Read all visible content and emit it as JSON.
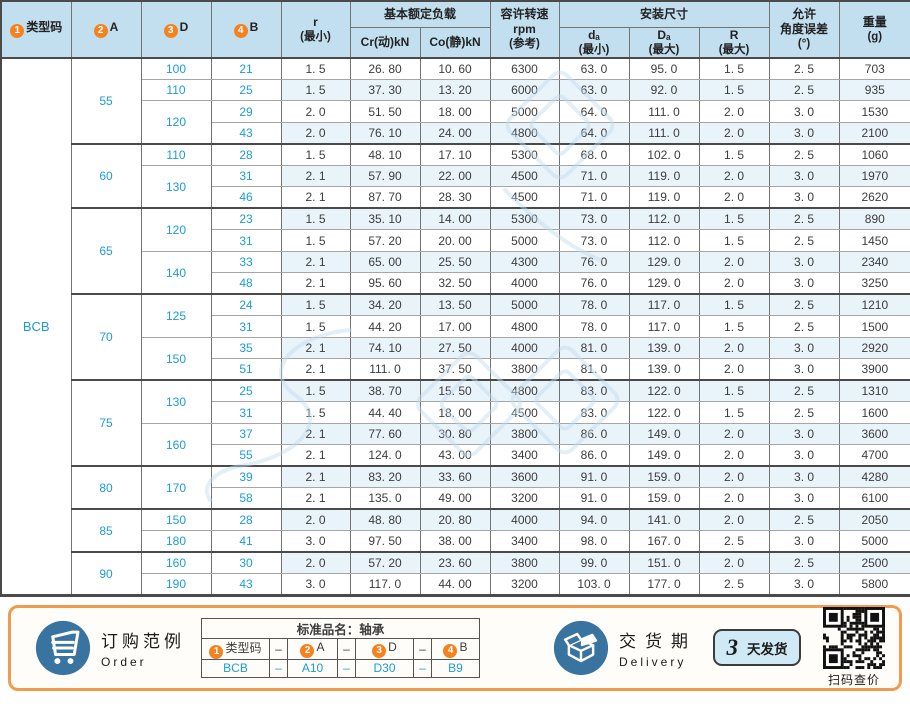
{
  "colors": {
    "accent_blue": "#1c9cd6",
    "header_bg": "#c2dfef",
    "alt_row_bg": "#e9f3fa",
    "circle_orange": "#f5821f",
    "icon_blue": "#38749f",
    "footer_border": "#f09b50",
    "badge_bg": "#cfe9f5"
  },
  "table": {
    "type_code": "BCB",
    "headers": {
      "num1": "1",
      "num2": "2",
      "num3": "3",
      "num4": "4",
      "col_type": "类型码",
      "col_a": "A",
      "col_d": "D",
      "col_b": "B",
      "r_min": "r",
      "r_min_sub": "(最小)",
      "load_group": "基本额定负载",
      "cr": "Cr(动)kN",
      "co": "Co(静)kN",
      "rpm_l1": "容许转速",
      "rpm_l2": "rpm",
      "rpm_l3": "(参考)",
      "mount_group": "安装尺寸",
      "da": "dₐ",
      "da_sub": "(最小)",
      "Da": "Dₐ",
      "Da_sub": "(最大)",
      "R": "R",
      "R_sub": "(最大)",
      "ang_l1": "允许",
      "ang_l2": "角度误差",
      "ang_l3": "(°)",
      "wt_l1": "重量",
      "wt_l2": "(g)"
    },
    "groups": [
      {
        "a": "55",
        "d_blocks": [
          {
            "d": "100",
            "rows": [
              {
                "b": "21",
                "r": "1. 5",
                "cr": "26. 80",
                "co": "10. 60",
                "rpm": "6300",
                "da": "63. 0",
                "Da": "95. 0",
                "R": "1. 5",
                "ang": "2. 5",
                "wt": "703"
              }
            ]
          },
          {
            "d": "110",
            "rows": [
              {
                "b": "25",
                "r": "1. 5",
                "cr": "37. 30",
                "co": "13. 20",
                "rpm": "6000",
                "da": "63. 0",
                "Da": "92. 0",
                "R": "1. 5",
                "ang": "2. 5",
                "wt": "935"
              }
            ]
          },
          {
            "d": "120",
            "rows": [
              {
                "b": "29",
                "r": "2. 0",
                "cr": "51. 50",
                "co": "18. 00",
                "rpm": "5000",
                "da": "64. 0",
                "Da": "111. 0",
                "R": "2. 0",
                "ang": "3. 0",
                "wt": "1530"
              },
              {
                "b": "43",
                "r": "2. 0",
                "cr": "76. 10",
                "co": "24. 00",
                "rpm": "4800",
                "da": "64. 0",
                "Da": "111. 0",
                "R": "2. 0",
                "ang": "3. 0",
                "wt": "2100"
              }
            ]
          }
        ]
      },
      {
        "a": "60",
        "d_blocks": [
          {
            "d": "110",
            "rows": [
              {
                "b": "28",
                "r": "1. 5",
                "cr": "48. 10",
                "co": "17. 10",
                "rpm": "5300",
                "da": "68. 0",
                "Da": "102. 0",
                "R": "1. 5",
                "ang": "2. 5",
                "wt": "1060"
              }
            ]
          },
          {
            "d": "130",
            "rows": [
              {
                "b": "31",
                "r": "2. 1",
                "cr": "57. 90",
                "co": "22. 00",
                "rpm": "4500",
                "da": "71. 0",
                "Da": "119. 0",
                "R": "2. 0",
                "ang": "3. 0",
                "wt": "1970"
              },
              {
                "b": "46",
                "r": "2. 1",
                "cr": "87. 70",
                "co": "28. 30",
                "rpm": "4500",
                "da": "71. 0",
                "Da": "119. 0",
                "R": "2. 0",
                "ang": "3. 0",
                "wt": "2620"
              }
            ]
          }
        ]
      },
      {
        "a": "65",
        "d_blocks": [
          {
            "d": "120",
            "rows": [
              {
                "b": "23",
                "r": "1. 5",
                "cr": "35. 10",
                "co": "14. 00",
                "rpm": "5300",
                "da": "73. 0",
                "Da": "112. 0",
                "R": "1. 5",
                "ang": "2. 5",
                "wt": "890"
              },
              {
                "b": "31",
                "r": "1. 5",
                "cr": "57. 20",
                "co": "20. 00",
                "rpm": "5000",
                "da": "73. 0",
                "Da": "112. 0",
                "R": "1. 5",
                "ang": "2. 5",
                "wt": "1450"
              }
            ]
          },
          {
            "d": "140",
            "rows": [
              {
                "b": "33",
                "r": "2. 1",
                "cr": "65. 00",
                "co": "25. 50",
                "rpm": "4300",
                "da": "76. 0",
                "Da": "129. 0",
                "R": "2. 0",
                "ang": "3. 0",
                "wt": "2340"
              },
              {
                "b": "48",
                "r": "2. 1",
                "cr": "95. 60",
                "co": "32. 50",
                "rpm": "4000",
                "da": "76. 0",
                "Da": "129. 0",
                "R": "2. 0",
                "ang": "3. 0",
                "wt": "3250"
              }
            ]
          }
        ]
      },
      {
        "a": "70",
        "d_blocks": [
          {
            "d": "125",
            "rows": [
              {
                "b": "24",
                "r": "1. 5",
                "cr": "34. 20",
                "co": "13. 50",
                "rpm": "5000",
                "da": "78. 0",
                "Da": "117. 0",
                "R": "1. 5",
                "ang": "2. 5",
                "wt": "1210"
              },
              {
                "b": "31",
                "r": "1. 5",
                "cr": "44. 20",
                "co": "17. 00",
                "rpm": "4800",
                "da": "78. 0",
                "Da": "117. 0",
                "R": "1. 5",
                "ang": "2. 5",
                "wt": "1500"
              }
            ]
          },
          {
            "d": "150",
            "rows": [
              {
                "b": "35",
                "r": "2. 1",
                "cr": "74. 10",
                "co": "27. 50",
                "rpm": "4000",
                "da": "81. 0",
                "Da": "139. 0",
                "R": "2. 0",
                "ang": "3. 0",
                "wt": "2920"
              },
              {
                "b": "51",
                "r": "2. 1",
                "cr": "111. 0",
                "co": "37. 50",
                "rpm": "3800",
                "da": "81. 0",
                "Da": "139. 0",
                "R": "2. 0",
                "ang": "3. 0",
                "wt": "3900"
              }
            ]
          }
        ]
      },
      {
        "a": "75",
        "d_blocks": [
          {
            "d": "130",
            "rows": [
              {
                "b": "25",
                "r": "1. 5",
                "cr": "38. 70",
                "co": "15. 50",
                "rpm": "4800",
                "da": "83. 0",
                "Da": "122. 0",
                "R": "1. 5",
                "ang": "2. 5",
                "wt": "1310"
              },
              {
                "b": "31",
                "r": "1. 5",
                "cr": "44. 40",
                "co": "18. 00",
                "rpm": "4500",
                "da": "83. 0",
                "Da": "122. 0",
                "R": "1. 5",
                "ang": "2. 5",
                "wt": "1600"
              }
            ]
          },
          {
            "d": "160",
            "rows": [
              {
                "b": "37",
                "r": "2. 1",
                "cr": "77. 60",
                "co": "30. 80",
                "rpm": "3800",
                "da": "86. 0",
                "Da": "149. 0",
                "R": "2. 0",
                "ang": "3. 0",
                "wt": "3600"
              },
              {
                "b": "55",
                "r": "2. 1",
                "cr": "124. 0",
                "co": "43. 00",
                "rpm": "3400",
                "da": "86. 0",
                "Da": "149. 0",
                "R": "2. 0",
                "ang": "3. 0",
                "wt": "4700"
              }
            ]
          }
        ]
      },
      {
        "a": "80",
        "d_blocks": [
          {
            "d": "170",
            "rows": [
              {
                "b": "39",
                "r": "2. 1",
                "cr": "83. 20",
                "co": "33. 60",
                "rpm": "3600",
                "da": "91. 0",
                "Da": "159. 0",
                "R": "2. 0",
                "ang": "3. 0",
                "wt": "4280"
              },
              {
                "b": "58",
                "r": "2. 1",
                "cr": "135. 0",
                "co": "49. 00",
                "rpm": "3200",
                "da": "91. 0",
                "Da": "159. 0",
                "R": "2. 0",
                "ang": "3. 0",
                "wt": "6100"
              }
            ]
          }
        ]
      },
      {
        "a": "85",
        "d_blocks": [
          {
            "d": "150",
            "rows": [
              {
                "b": "28",
                "r": "2. 0",
                "cr": "48. 80",
                "co": "20. 80",
                "rpm": "4000",
                "da": "94. 0",
                "Da": "141. 0",
                "R": "2. 0",
                "ang": "2. 5",
                "wt": "2050"
              }
            ]
          },
          {
            "d": "180",
            "rows": [
              {
                "b": "41",
                "r": "3. 0",
                "cr": "97. 50",
                "co": "38. 00",
                "rpm": "3400",
                "da": "98. 0",
                "Da": "167. 0",
                "R": "2. 5",
                "ang": "3. 0",
                "wt": "5000"
              }
            ]
          }
        ]
      },
      {
        "a": "90",
        "d_blocks": [
          {
            "d": "160",
            "rows": [
              {
                "b": "30",
                "r": "2. 0",
                "cr": "57. 20",
                "co": "23. 60",
                "rpm": "3800",
                "da": "99. 0",
                "Da": "151. 0",
                "R": "2. 0",
                "ang": "2. 5",
                "wt": "2500"
              }
            ]
          },
          {
            "d": "190",
            "rows": [
              {
                "b": "43",
                "r": "3. 0",
                "cr": "117. 0",
                "co": "44. 00",
                "rpm": "3200",
                "da": "103. 0",
                "Da": "177. 0",
                "R": "2. 5",
                "ang": "3. 0",
                "wt": "5800"
              }
            ]
          }
        ]
      }
    ]
  },
  "footer": {
    "order": {
      "title": "订购范例",
      "subtitle": "Order"
    },
    "order_table": {
      "caption": "标准品名：轴承",
      "dash": "–",
      "cols": [
        {
          "num": "1",
          "label": "类型码",
          "value": "BCB"
        },
        {
          "num": "2",
          "label": "A",
          "value": "A10"
        },
        {
          "num": "3",
          "label": "D",
          "value": "D30"
        },
        {
          "num": "4",
          "label": "B",
          "value": "B9"
        }
      ]
    },
    "delivery": {
      "title": "交货期",
      "subtitle": "Delivery",
      "days": "3",
      "days_label": "天发货"
    },
    "qr_caption": "扫码查价"
  }
}
